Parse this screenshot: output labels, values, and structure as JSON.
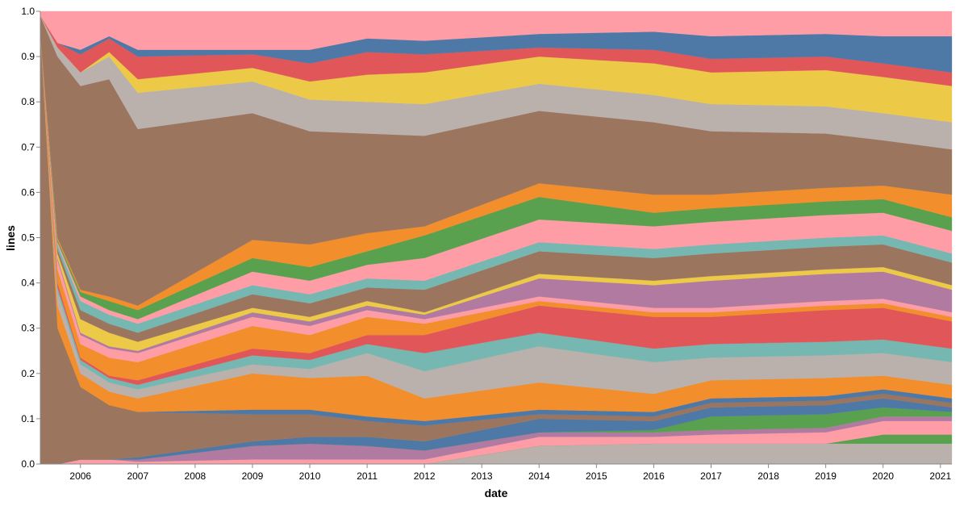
{
  "chart_data": {
    "type": "area",
    "stacked": true,
    "x_label": "date",
    "y_label": "lines",
    "x": [
      2005.3,
      2005.6,
      2006,
      2006.5,
      2007,
      2009,
      2010,
      2011,
      2012,
      2014,
      2016,
      2017,
      2019,
      2020,
      2021.2
    ],
    "xlim": [
      2005.3,
      2021.2
    ],
    "xticks": [
      2006,
      2007,
      2008,
      2009,
      2010,
      2011,
      2012,
      2013,
      2014,
      2015,
      2016,
      2017,
      2018,
      2019,
      2020,
      2021
    ],
    "ylim": [
      0,
      1
    ],
    "yticks": [
      {
        "value": 0,
        "label": "0.0"
      },
      0.1,
      0.2,
      0.3,
      0.4,
      0.5,
      0.6,
      0.7,
      0.8,
      0.9,
      {
        "value": 1,
        "label": "1.0"
      }
    ],
    "series": [
      {
        "color": "#bab0ac",
        "values": [
          0,
          0,
          0,
          0,
          0,
          0,
          0,
          0,
          0,
          0.04,
          0.045,
          0.045,
          0.045,
          0.045,
          0.045
        ]
      },
      {
        "color": "#59a14f",
        "values": [
          0,
          0,
          0,
          0,
          0,
          0,
          0,
          0,
          0,
          0,
          0,
          0,
          0,
          0.02,
          0.02
        ]
      },
      {
        "color": "#ff9da7",
        "values": [
          0,
          0,
          0.01,
          0.01,
          0.005,
          0.01,
          0.01,
          0.01,
          0.01,
          0.02,
          0.015,
          0.02,
          0.025,
          0.03,
          0.03
        ]
      },
      {
        "color": "#b07aa1",
        "values": [
          0,
          0,
          0,
          0,
          0.005,
          0.03,
          0.035,
          0.03,
          0.02,
          0.01,
          0.01,
          0.01,
          0.01,
          0.01,
          0.01
        ]
      },
      {
        "color": "#59a14f",
        "values": [
          0,
          0,
          0,
          0,
          0,
          0,
          0,
          0,
          0,
          0,
          0.005,
          0.03,
          0.03,
          0.02,
          0.01
        ]
      },
      {
        "color": "#4e79a7",
        "values": [
          0,
          0,
          0,
          0,
          0.005,
          0.01,
          0.015,
          0.02,
          0.02,
          0.03,
          0.02,
          0.02,
          0.02,
          0.02,
          0.01
        ]
      },
      {
        "color": "#9c755f",
        "values": [
          0.95,
          0.3,
          0.16,
          0.12,
          0.1,
          0.06,
          0.05,
          0.035,
          0.035,
          0.01,
          0.01,
          0.01,
          0.01,
          0.01,
          0.01
        ]
      },
      {
        "color": "#4e79a7",
        "values": [
          0,
          0,
          0,
          0,
          0,
          0.01,
          0.01,
          0.01,
          0.01,
          0.01,
          0.01,
          0.01,
          0.01,
          0.01,
          0.01
        ]
      },
      {
        "color": "#f28e2b",
        "values": [
          0,
          0.05,
          0.03,
          0.03,
          0.03,
          0.08,
          0.07,
          0.09,
          0.05,
          0.06,
          0.04,
          0.04,
          0.04,
          0.03,
          0.03
        ]
      },
      {
        "color": "#bab0ac",
        "values": [
          0,
          0.03,
          0.02,
          0.02,
          0.02,
          0.02,
          0.02,
          0.05,
          0.06,
          0.08,
          0.07,
          0.05,
          0.05,
          0.05,
          0.05
        ]
      },
      {
        "color": "#76b7b2",
        "values": [
          0,
          0.01,
          0.01,
          0.01,
          0.01,
          0.02,
          0.02,
          0.02,
          0.04,
          0.03,
          0.03,
          0.03,
          0.03,
          0.03,
          0.03
        ]
      },
      {
        "color": "#e15759",
        "values": [
          0,
          0.01,
          0.005,
          0.005,
          0.01,
          0.015,
          0.015,
          0.02,
          0.04,
          0.06,
          0.07,
          0.06,
          0.07,
          0.07,
          0.06
        ]
      },
      {
        "color": "#f28e2b",
        "values": [
          0,
          0.03,
          0.03,
          0.04,
          0.04,
          0.05,
          0.04,
          0.04,
          0.025,
          0.01,
          0.01,
          0.01,
          0.01,
          0.01,
          0.01
        ]
      },
      {
        "color": "#ff9da7",
        "values": [
          0,
          0.02,
          0.02,
          0.02,
          0.02,
          0.02,
          0.02,
          0.015,
          0.01,
          0.01,
          0.01,
          0.01,
          0.01,
          0.01,
          0.01
        ]
      },
      {
        "color": "#b07aa1",
        "values": [
          0,
          0.005,
          0.005,
          0.005,
          0.005,
          0.01,
          0.01,
          0.01,
          0.01,
          0.04,
          0.05,
          0.06,
          0.06,
          0.06,
          0.05
        ]
      },
      {
        "color": "#edc948",
        "values": [
          0,
          0.01,
          0.03,
          0.03,
          0.02,
          0.01,
          0.01,
          0.01,
          0.005,
          0.01,
          0.01,
          0.01,
          0.01,
          0.01,
          0.01
        ]
      },
      {
        "color": "#9c755f",
        "values": [
          0,
          0.01,
          0.02,
          0.02,
          0.02,
          0.03,
          0.03,
          0.03,
          0.05,
          0.05,
          0.05,
          0.05,
          0.05,
          0.05,
          0.05
        ]
      },
      {
        "color": "#76b7b2",
        "values": [
          0,
          0.01,
          0.02,
          0.02,
          0.02,
          0.02,
          0.02,
          0.02,
          0.02,
          0.02,
          0.02,
          0.02,
          0.02,
          0.02,
          0.02
        ]
      },
      {
        "color": "#ff9da7",
        "values": [
          0,
          0.005,
          0.01,
          0.01,
          0.01,
          0.03,
          0.03,
          0.03,
          0.05,
          0.05,
          0.05,
          0.05,
          0.05,
          0.05,
          0.05
        ]
      },
      {
        "color": "#59a14f",
        "values": [
          0,
          0.005,
          0.01,
          0.02,
          0.02,
          0.03,
          0.03,
          0.03,
          0.05,
          0.05,
          0.03,
          0.03,
          0.03,
          0.03,
          0.03
        ]
      },
      {
        "color": "#f28e2b",
        "values": [
          0,
          0.005,
          0.005,
          0.01,
          0.01,
          0.04,
          0.05,
          0.04,
          0.02,
          0.03,
          0.04,
          0.03,
          0.03,
          0.03,
          0.05
        ]
      },
      {
        "color": "#9c755f",
        "values": [
          0.04,
          0.4,
          0.45,
          0.48,
          0.39,
          0.28,
          0.25,
          0.22,
          0.2,
          0.16,
          0.16,
          0.14,
          0.12,
          0.1,
          0.1
        ]
      },
      {
        "color": "#bab0ac",
        "values": [
          0,
          0.02,
          0.03,
          0.05,
          0.08,
          0.07,
          0.07,
          0.07,
          0.07,
          0.06,
          0.06,
          0.06,
          0.06,
          0.06,
          0.06
        ]
      },
      {
        "color": "#edc948",
        "values": [
          0,
          0,
          0,
          0.01,
          0.03,
          0.03,
          0.04,
          0.06,
          0.07,
          0.06,
          0.07,
          0.07,
          0.08,
          0.08,
          0.08
        ]
      },
      {
        "color": "#e15759",
        "values": [
          0,
          0.01,
          0.04,
          0.03,
          0.05,
          0.03,
          0.04,
          0.05,
          0.04,
          0.02,
          0.03,
          0.03,
          0.03,
          0.03,
          0.03
        ]
      },
      {
        "color": "#4e79a7",
        "values": [
          0,
          0,
          0.01,
          0.005,
          0.015,
          0.01,
          0.03,
          0.03,
          0.03,
          0.03,
          0.04,
          0.05,
          0.05,
          0.06,
          0.08
        ]
      },
      {
        "color": "#ff9da7",
        "values": [
          0.01,
          0.07,
          0.085,
          0.055,
          0.085,
          0.085,
          0.085,
          0.06,
          0.065,
          0.05,
          0.045,
          0.055,
          0.05,
          0.055,
          0.055
        ]
      }
    ]
  }
}
